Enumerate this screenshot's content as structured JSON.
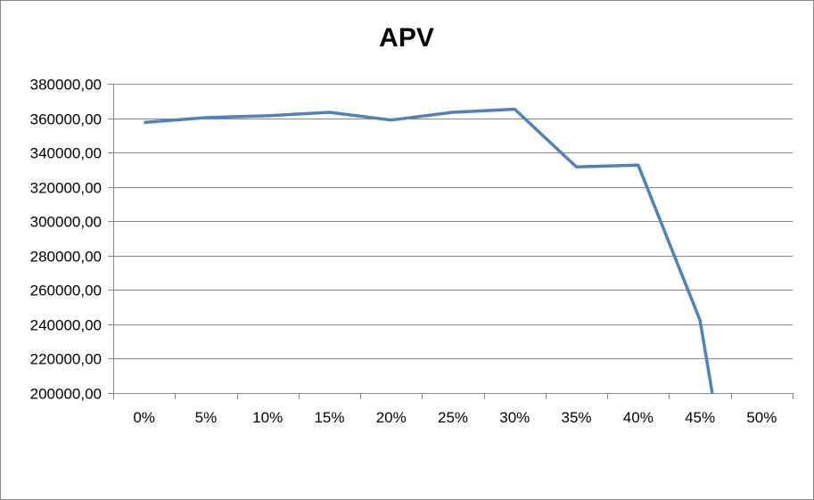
{
  "chart_data": {
    "type": "line",
    "title": "APV",
    "xlabel": "",
    "ylabel": "",
    "categories": [
      "0%",
      "5%",
      "10%",
      "15%",
      "20%",
      "25%",
      "30%",
      "35%",
      "40%",
      "45%",
      "50%"
    ],
    "y_tick_labels": [
      "380000,00",
      "360000,00",
      "340000,00",
      "320000,00",
      "300000,00",
      "280000,00",
      "260000,00",
      "240000,00",
      "220000,00",
      "200000,00"
    ],
    "ylim": [
      200000,
      380000
    ],
    "grid": true,
    "legend": "none",
    "series": [
      {
        "color": "#4f81bd",
        "points": [
          {
            "x": 0,
            "y": 357500
          },
          {
            "x": 5,
            "y": 360300
          },
          {
            "x": 10,
            "y": 361400
          },
          {
            "x": 15,
            "y": 363400
          },
          {
            "x": 20,
            "y": 358900
          },
          {
            "x": 25,
            "y": 363400
          },
          {
            "x": 30,
            "y": 365200
          },
          {
            "x": 35,
            "y": 331600
          },
          {
            "x": 40,
            "y": 332700
          },
          {
            "x": 45,
            "y": 242500
          },
          {
            "x": 46,
            "y": 200000
          }
        ]
      }
    ]
  }
}
